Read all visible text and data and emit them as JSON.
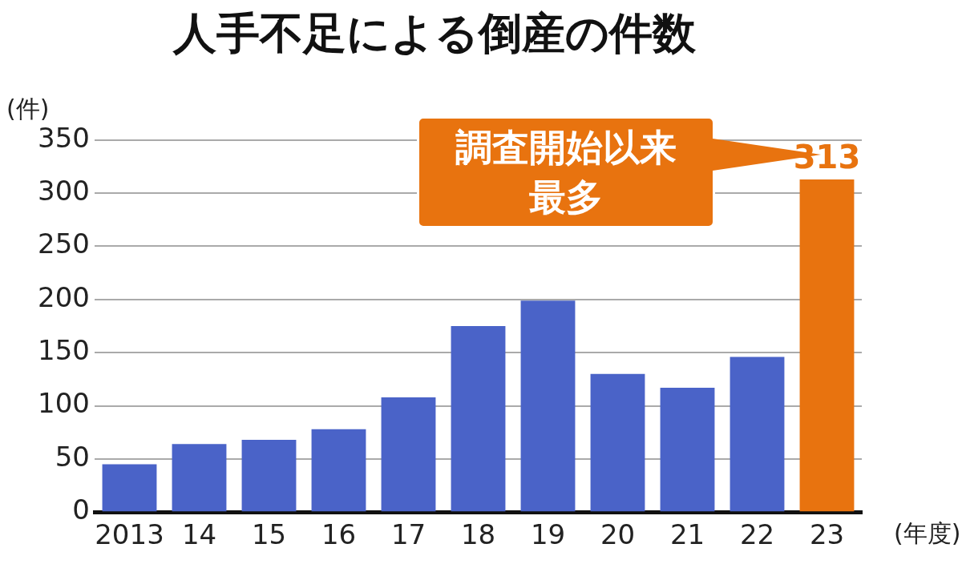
{
  "chart_data": {
    "type": "bar",
    "title": "人手不足による倒産の件数",
    "ylabel": "(件)",
    "xlabel": "(年度)",
    "categories": [
      "2013",
      "14",
      "15",
      "16",
      "17",
      "18",
      "19",
      "20",
      "21",
      "22",
      "23"
    ],
    "values": [
      45,
      64,
      68,
      78,
      108,
      175,
      199,
      130,
      117,
      146,
      313
    ],
    "colors": [
      "#4a63c8",
      "#4a63c8",
      "#4a63c8",
      "#4a63c8",
      "#4a63c8",
      "#4a63c8",
      "#4a63c8",
      "#4a63c8",
      "#4a63c8",
      "#4a63c8",
      "#e8730f"
    ],
    "value_labels": [
      null,
      null,
      null,
      null,
      null,
      null,
      null,
      null,
      null,
      null,
      "313"
    ],
    "ylim": [
      0,
      350
    ],
    "yticks": [
      0,
      50,
      100,
      150,
      200,
      250,
      300,
      350
    ],
    "grid": "y",
    "legend": false,
    "annotations": [
      "調査開始以来最多"
    ]
  }
}
